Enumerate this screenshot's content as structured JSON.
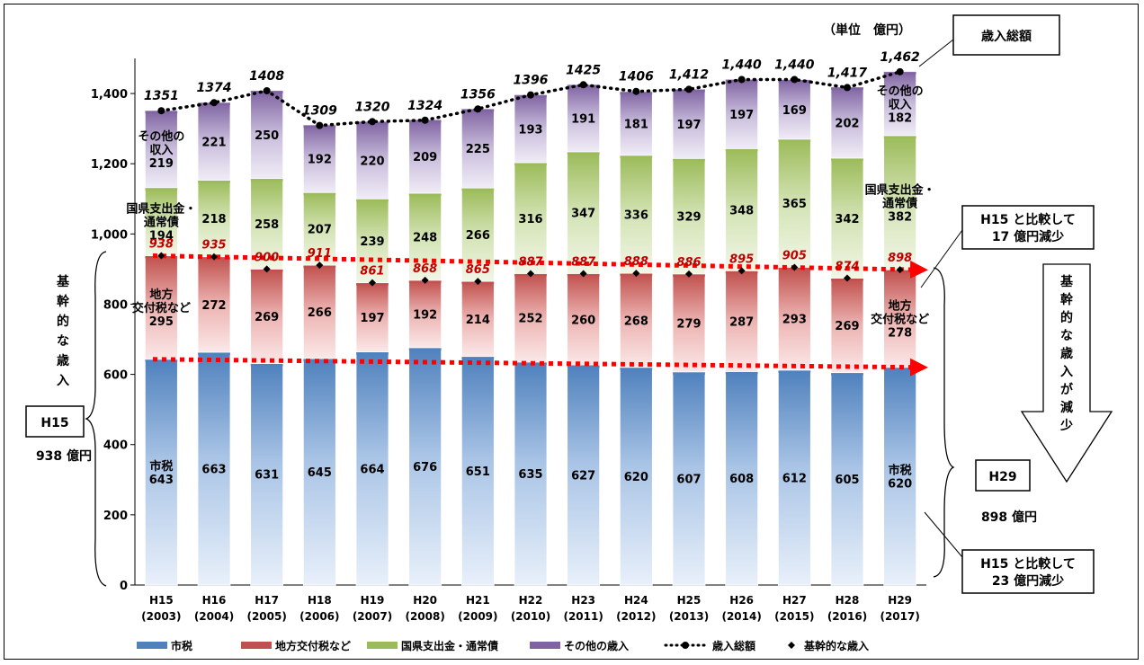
{
  "chart_data": {
    "type": "bar",
    "stacked": true,
    "unit_label": "（単位　億円）",
    "categories": [
      {
        "era": "H15",
        "year": "(2003)"
      },
      {
        "era": "H16",
        "year": "(2004)"
      },
      {
        "era": "H17",
        "year": "(2005)"
      },
      {
        "era": "H18",
        "year": "(2006)"
      },
      {
        "era": "H19",
        "year": "(2007)"
      },
      {
        "era": "H20",
        "year": "(2008)"
      },
      {
        "era": "H21",
        "year": "(2009)"
      },
      {
        "era": "H22",
        "year": "(2010)"
      },
      {
        "era": "H23",
        "year": "(2011)"
      },
      {
        "era": "H24",
        "year": "(2012)"
      },
      {
        "era": "H25",
        "year": "(2013)"
      },
      {
        "era": "H26",
        "year": "(2014)"
      },
      {
        "era": "H27",
        "year": "(2015)"
      },
      {
        "era": "H28",
        "year": "(2016)"
      },
      {
        "era": "H29",
        "year": "(2017)"
      }
    ],
    "series": [
      {
        "name": "市税",
        "color": "#4f81bd",
        "values": [
          643,
          663,
          631,
          645,
          664,
          676,
          651,
          635,
          627,
          620,
          607,
          608,
          612,
          605,
          620
        ]
      },
      {
        "name": "地方交付税など",
        "color": "#c0504d",
        "values": [
          295,
          272,
          269,
          266,
          197,
          192,
          214,
          252,
          260,
          268,
          279,
          287,
          293,
          269,
          278
        ]
      },
      {
        "name": "国県支出金・通常債",
        "color": "#9bbb59",
        "values": [
          194,
          218,
          258,
          207,
          239,
          248,
          266,
          316,
          347,
          336,
          329,
          348,
          365,
          342,
          382
        ]
      },
      {
        "name": "その他の歳入",
        "color": "#8064a2",
        "values": [
          219,
          221,
          250,
          192,
          220,
          209,
          225,
          193,
          191,
          181,
          197,
          197,
          169,
          202,
          182
        ]
      }
    ],
    "totals": {
      "name": "歳入総額",
      "values": [
        1351,
        1374,
        1408,
        1309,
        1320,
        1324,
        1356,
        1396,
        1425,
        1406,
        1412,
        1440,
        1440,
        1417,
        1462
      ],
      "labels": [
        "1351",
        "1374",
        "1408",
        "1309",
        "1320",
        "1324",
        "1356",
        "1396",
        "1425",
        "1406",
        "1,412",
        "1,440",
        "1,440",
        "1,417",
        "1,462"
      ]
    },
    "core_revenue": {
      "name": "基幹的な歳入",
      "values": [
        938,
        935,
        900,
        911,
        861,
        868,
        865,
        887,
        887,
        888,
        886,
        895,
        905,
        874,
        898
      ]
    },
    "y_ticks": [
      {
        "value": 0,
        "label": "0"
      },
      {
        "value": 200,
        "label": "200"
      },
      {
        "value": 400,
        "label": "400"
      },
      {
        "value": 600,
        "label": "600"
      },
      {
        "value": 800,
        "label": "800"
      },
      {
        "value": 1000,
        "label": "1,000"
      },
      {
        "value": 1200,
        "label": "1,200"
      },
      {
        "value": 1400,
        "label": "1,400"
      }
    ],
    "ylim": [
      0,
      1500
    ],
    "first_bar_labels": {
      "s0": [
        "市税",
        "643"
      ],
      "s1": [
        "地方",
        "交付税など",
        "295"
      ],
      "s2": [
        "国県支出金・",
        "通常債",
        "194"
      ],
      "s3": [
        "その他の",
        "収入",
        "219"
      ]
    },
    "last_bar_labels": {
      "s0": [
        "市税",
        "620"
      ],
      "s1": [
        "地方",
        "交付税など",
        "278"
      ],
      "s2": [
        "国県支出金・",
        "通常債",
        "382"
      ],
      "s3": [
        "その他の",
        "収入",
        "182"
      ]
    },
    "legend": {
      "items": [
        {
          "kind": "bar",
          "color": "#4f81bd",
          "label": "市税"
        },
        {
          "kind": "bar",
          "color": "#c0504d",
          "label": "地方交付税など"
        },
        {
          "kind": "bar",
          "color": "#9bbb59",
          "label": "国県支出金・通常債"
        },
        {
          "kind": "bar",
          "color": "#8064a2",
          "label": "その他の歳入"
        },
        {
          "kind": "line",
          "color": "#000000",
          "label": "歳入総額"
        },
        {
          "kind": "diamond",
          "color": "#000000",
          "label": "基幹的な歳入"
        }
      ]
    }
  },
  "annotations": {
    "total_box": "歳入総額",
    "core_vertical": "基幹的な歳入",
    "h15_box": "H15",
    "h15_amount": "938 億円",
    "h29_box": "H29",
    "h29_amount": "898 億円",
    "callout_17_line1": "H15 と比較して",
    "callout_17_line2": "17 億円減少",
    "callout_23_line1": "H15 と比較して",
    "callout_23_line2": "23 億円減少",
    "arrow_text": "基幹的な歳入が減少"
  }
}
